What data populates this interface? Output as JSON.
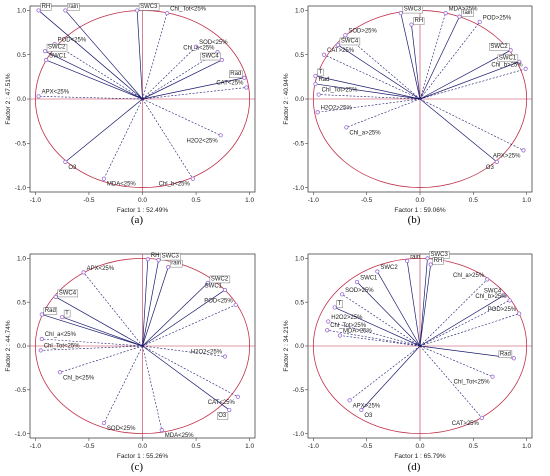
{
  "chart_data": [
    {
      "type": "scatter",
      "panel_label": "(a)",
      "xlabel": "Factor 1 : 52.49%",
      "ylabel": "Factor 2 : 47.51%",
      "xlim": [
        -1.05,
        1.05
      ],
      "ylim": [
        -1.05,
        1.05
      ],
      "xticks": [
        -1.0,
        -0.5,
        0.0,
        0.5,
        1.0
      ],
      "yticks": [
        -1.0,
        -0.5,
        0.0,
        0.5,
        1.0
      ],
      "unit_circle": true,
      "points": [
        {
          "label": "rain",
          "x": -0.72,
          "y": 1.0,
          "line": "solid",
          "boxed": true
        },
        {
          "label": "RH",
          "x": -0.97,
          "y": 1.0,
          "line": "solid",
          "boxed": true
        },
        {
          "label": "SWC3",
          "x": -0.05,
          "y": 1.0,
          "line": "solid",
          "boxed": true
        },
        {
          "label": "Chl_Tot<25%",
          "x": 0.23,
          "y": 0.97,
          "line": "dashed",
          "boxed": false
        },
        {
          "label": "POD<25%",
          "x": -0.82,
          "y": 0.62,
          "line": "dashed",
          "boxed": false
        },
        {
          "label": "SWC2",
          "x": -0.91,
          "y": 0.54,
          "line": "solid",
          "boxed": true
        },
        {
          "label": "SWC1",
          "x": -0.9,
          "y": 0.44,
          "line": "solid",
          "boxed": false
        },
        {
          "label": "SOD<25%",
          "x": 0.5,
          "y": 0.59,
          "line": "dashed",
          "boxed": false
        },
        {
          "label": "Chl_a<25%",
          "x": 0.7,
          "y": 0.53,
          "line": "dashed",
          "boxed": false
        },
        {
          "label": "SWC4",
          "x": 0.74,
          "y": 0.44,
          "line": "solid",
          "boxed": true
        },
        {
          "label": "Rad",
          "x": 0.95,
          "y": 0.24,
          "line": "solid",
          "boxed": true
        },
        {
          "label": "CAT<25%",
          "x": 0.97,
          "y": 0.13,
          "line": "dashed",
          "boxed": false
        },
        {
          "label": "APX<25%",
          "x": -0.97,
          "y": 0.03,
          "line": "dashed",
          "boxed": false
        },
        {
          "label": "H2O2<25%",
          "x": 0.73,
          "y": -0.41,
          "line": "dashed",
          "boxed": false
        },
        {
          "label": "O3",
          "x": -0.72,
          "y": -0.71,
          "line": "solid",
          "boxed": false
        },
        {
          "label": "MDA<25%",
          "x": -0.36,
          "y": -0.9,
          "line": "dashed",
          "boxed": false
        },
        {
          "label": "Chl_b<25%",
          "x": 0.47,
          "y": -0.9,
          "line": "dashed",
          "boxed": false
        }
      ]
    },
    {
      "type": "scatter",
      "panel_label": "(b)",
      "xlabel": "Factor 1 : 59.06%",
      "ylabel": "Factor 2 : 40.94%",
      "xlim": [
        -1.05,
        1.05
      ],
      "ylim": [
        -1.05,
        1.05
      ],
      "xticks": [
        -1.0,
        -0.5,
        0.0,
        0.5,
        1.0
      ],
      "yticks": [
        -1.0,
        -0.5,
        0.0,
        0.5,
        1.0
      ],
      "unit_circle": true,
      "points": [
        {
          "label": "MDA>25%",
          "x": 0.24,
          "y": 0.97,
          "line": "dashed",
          "boxed": false
        },
        {
          "label": "SWC3",
          "x": -0.18,
          "y": 0.97,
          "line": "solid",
          "boxed": true
        },
        {
          "label": "rain",
          "x": 0.37,
          "y": 0.93,
          "line": "solid",
          "boxed": true
        },
        {
          "label": "POD>25%",
          "x": 0.56,
          "y": 0.87,
          "line": "dashed",
          "boxed": false
        },
        {
          "label": "RH",
          "x": -0.08,
          "y": 0.84,
          "line": "solid",
          "boxed": true
        },
        {
          "label": "SOD>25%",
          "x": -0.7,
          "y": 0.72,
          "line": "dashed",
          "boxed": false
        },
        {
          "label": "SWC4",
          "x": -0.77,
          "y": 0.61,
          "line": "solid",
          "boxed": true
        },
        {
          "label": "CAT>25%",
          "x": -0.9,
          "y": 0.5,
          "line": "dashed",
          "boxed": false
        },
        {
          "label": "SWC2",
          "x": 0.85,
          "y": 0.55,
          "line": "solid",
          "boxed": true
        },
        {
          "label": "SWC1",
          "x": 0.93,
          "y": 0.42,
          "line": "solid",
          "boxed": true
        },
        {
          "label": "Chl_b>25%",
          "x": 0.99,
          "y": 0.34,
          "line": "dashed",
          "boxed": false
        },
        {
          "label": "T",
          "x": -0.98,
          "y": 0.26,
          "line": "solid",
          "boxed": true
        },
        {
          "label": "Rad",
          "x": -0.98,
          "y": 0.17,
          "line": "solid",
          "boxed": false
        },
        {
          "label": "Chl_Tot>25%",
          "x": -0.95,
          "y": 0.05,
          "line": "dashed",
          "boxed": false
        },
        {
          "label": "H2O2>25%",
          "x": -0.96,
          "y": -0.15,
          "line": "dashed",
          "boxed": false
        },
        {
          "label": "Chl_a>25%",
          "x": -0.69,
          "y": -0.32,
          "line": "dashed",
          "boxed": false
        },
        {
          "label": "APX>25%",
          "x": 0.97,
          "y": -0.58,
          "line": "dashed",
          "boxed": false
        },
        {
          "label": "O3",
          "x": 0.72,
          "y": -0.71,
          "line": "solid",
          "boxed": false
        }
      ]
    },
    {
      "type": "scatter",
      "panel_label": "(c)",
      "xlabel": "Factor 1 : 55.26%",
      "ylabel": "Factor 2 : 44.74%",
      "xlim": [
        -1.05,
        1.05
      ],
      "ylim": [
        -1.05,
        1.05
      ],
      "xticks": [
        -1.0,
        -0.5,
        0.0,
        0.5,
        1.0
      ],
      "yticks": [
        -1.0,
        -0.5,
        0.0,
        0.5,
        1.0
      ],
      "unit_circle": true,
      "points": [
        {
          "label": "RH",
          "x": 0.05,
          "y": 0.99,
          "line": "solid",
          "boxed": false
        },
        {
          "label": "SWC3",
          "x": 0.15,
          "y": 0.98,
          "line": "solid",
          "boxed": true
        },
        {
          "label": "APX<25%",
          "x": -0.55,
          "y": 0.84,
          "line": "dashed",
          "boxed": false
        },
        {
          "label": "rain",
          "x": 0.24,
          "y": 0.9,
          "line": "solid",
          "boxed": true
        },
        {
          "label": "SWC2",
          "x": 0.61,
          "y": 0.72,
          "line": "solid",
          "boxed": true
        },
        {
          "label": "SWC1",
          "x": 0.77,
          "y": 0.64,
          "line": "solid",
          "boxed": false
        },
        {
          "label": "POD<25%",
          "x": 0.87,
          "y": 0.47,
          "line": "dashed",
          "boxed": false
        },
        {
          "label": "SWC4",
          "x": -0.81,
          "y": 0.56,
          "line": "solid",
          "boxed": true
        },
        {
          "label": "Rad",
          "x": -0.94,
          "y": 0.36,
          "line": "solid",
          "boxed": true
        },
        {
          "label": "T",
          "x": -0.75,
          "y": 0.33,
          "line": "solid",
          "boxed": true
        },
        {
          "label": "Chl_a<25%",
          "x": -0.94,
          "y": 0.08,
          "line": "dashed",
          "boxed": false
        },
        {
          "label": "Chl_Tot<25%",
          "x": -0.95,
          "y": -0.05,
          "line": "dashed",
          "boxed": false
        },
        {
          "label": "H2O2<25%",
          "x": 0.77,
          "y": -0.12,
          "line": "dashed",
          "boxed": false
        },
        {
          "label": "Chl_b<25%",
          "x": -0.77,
          "y": -0.3,
          "line": "dashed",
          "boxed": false
        },
        {
          "label": "CAT<25%",
          "x": 0.89,
          "y": -0.58,
          "line": "dashed",
          "boxed": false
        },
        {
          "label": "O3",
          "x": 0.81,
          "y": -0.73,
          "line": "solid",
          "boxed": true
        },
        {
          "label": "SOD<25%",
          "x": -0.36,
          "y": -0.88,
          "line": "dashed",
          "boxed": false
        },
        {
          "label": "MDA<25%",
          "x": 0.18,
          "y": -0.96,
          "line": "dashed",
          "boxed": false
        }
      ]
    },
    {
      "type": "scatter",
      "panel_label": "(d)",
      "xlabel": "Factor 1 : 65.79%",
      "ylabel": "Factor 2 : 34.21%",
      "xlim": [
        -1.05,
        1.05
      ],
      "ylim": [
        -1.05,
        1.05
      ],
      "xticks": [
        -1.0,
        -0.5,
        0.0,
        0.5,
        1.0
      ],
      "yticks": [
        -1.0,
        -0.5,
        0.0,
        0.5,
        1.0
      ],
      "unit_circle": true,
      "points": [
        {
          "label": "SWC3",
          "x": 0.07,
          "y": 1.0,
          "line": "solid",
          "boxed": true
        },
        {
          "label": "rain",
          "x": -0.12,
          "y": 0.97,
          "line": "solid",
          "boxed": false
        },
        {
          "label": "RH",
          "x": 0.1,
          "y": 0.93,
          "line": "solid",
          "boxed": true
        },
        {
          "label": "SWC2",
          "x": -0.4,
          "y": 0.85,
          "line": "solid",
          "boxed": false
        },
        {
          "label": "Chl_a>25%",
          "x": 0.63,
          "y": 0.76,
          "line": "dashed",
          "boxed": false
        },
        {
          "label": "SWC1",
          "x": -0.59,
          "y": 0.73,
          "line": "solid",
          "boxed": false
        },
        {
          "label": "SWC4",
          "x": 0.79,
          "y": 0.58,
          "line": "solid",
          "boxed": false
        },
        {
          "label": "SOD>25%",
          "x": -0.73,
          "y": 0.59,
          "line": "dashed",
          "boxed": false
        },
        {
          "label": "Chl_b>25%",
          "x": 0.84,
          "y": 0.52,
          "line": "dashed",
          "boxed": false
        },
        {
          "label": "T",
          "x": -0.8,
          "y": 0.44,
          "line": "solid",
          "boxed": true
        },
        {
          "label": "POD>25%",
          "x": 0.93,
          "y": 0.37,
          "line": "dashed",
          "boxed": false
        },
        {
          "label": "H2O2>25%",
          "x": -0.86,
          "y": 0.28,
          "line": "dashed",
          "boxed": false
        },
        {
          "label": "Chl_Tot>25%",
          "x": -0.87,
          "y": 0.18,
          "line": "dashed",
          "boxed": false
        },
        {
          "label": "MDA>25%",
          "x": -0.75,
          "y": 0.12,
          "line": "dashed",
          "boxed": false
        },
        {
          "label": "Rad",
          "x": 0.88,
          "y": -0.14,
          "line": "solid",
          "boxed": true
        },
        {
          "label": "Chl_Tot<25%",
          "x": 0.68,
          "y": -0.35,
          "line": "dashed",
          "boxed": false
        },
        {
          "label": "APX>25%",
          "x": -0.66,
          "y": -0.62,
          "line": "dashed",
          "boxed": false
        },
        {
          "label": "O3",
          "x": -0.55,
          "y": -0.73,
          "line": "solid",
          "boxed": false
        },
        {
          "label": "CAT>25%",
          "x": 0.58,
          "y": -0.82,
          "line": "dashed",
          "boxed": false
        }
      ]
    }
  ],
  "colors": {
    "circle": "#c0304a",
    "axis_cross": "#c0304a",
    "vector": "#1a1a6e",
    "marker": "#9a6bd6",
    "frame": "#444444"
  }
}
